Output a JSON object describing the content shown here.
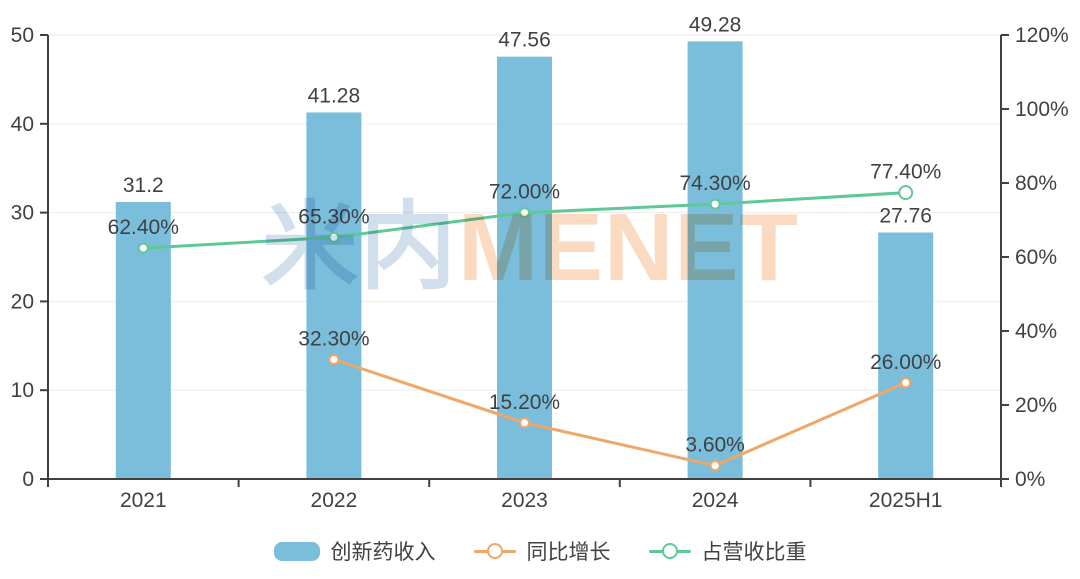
{
  "watermark": {
    "cn": "米内",
    "en": "MENET"
  },
  "colors": {
    "bar": "#7ABEDC",
    "yoy_line": "#EEA766",
    "share_line": "#5FC897",
    "label_text": "#3F4245",
    "axis": "#404040",
    "grid": "#EDEDF1",
    "watermark_cn": "#C9DAE9",
    "watermark_en": "#FAD8BC"
  },
  "chart_data": {
    "type": "bar+line",
    "title": "",
    "categories": [
      "2021",
      "2022",
      "2023",
      "2024",
      "2025H1"
    ],
    "left_axis": {
      "min": 0,
      "max": 50,
      "step": 10,
      "tick_labels": [
        "0",
        "10",
        "20",
        "30",
        "40",
        "50"
      ]
    },
    "right_axis": {
      "min": 0,
      "max": 120,
      "step": 20,
      "tick_labels": [
        "0%",
        "20%",
        "40%",
        "60%",
        "80%",
        "100%",
        "120%"
      ]
    },
    "grid": true,
    "legend_position": "bottom",
    "series": [
      {
        "name": "创新药收入",
        "type": "bar",
        "axis": "left",
        "values": [
          31.2,
          41.28,
          47.56,
          49.28,
          27.76
        ],
        "labels": [
          "31.2",
          "41.28",
          "47.56",
          "49.28",
          "27.76"
        ]
      },
      {
        "name": "同比增长",
        "type": "line",
        "axis": "right",
        "values": [
          null,
          32.3,
          15.2,
          3.6,
          26.0
        ],
        "labels": [
          "",
          "32.30%",
          "15.20%",
          "3.60%",
          "26.00%"
        ]
      },
      {
        "name": "占营收比重",
        "type": "line",
        "axis": "right",
        "values": [
          62.4,
          65.3,
          72.0,
          74.3,
          77.4
        ],
        "labels": [
          "62.40%",
          "65.30%",
          "72.00%",
          "74.30%",
          "77.40%"
        ],
        "end_marker": "open-circle"
      }
    ]
  }
}
